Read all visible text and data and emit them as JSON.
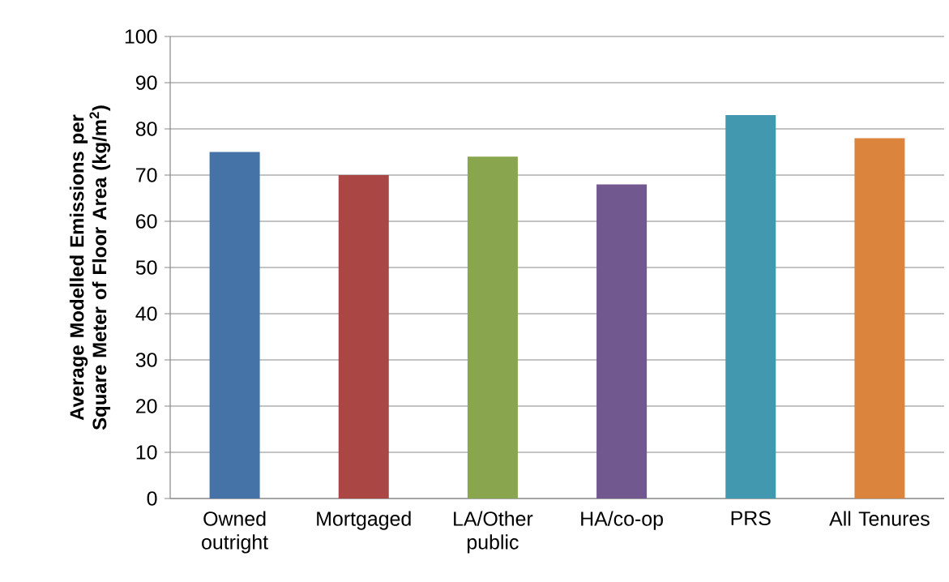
{
  "chart_data": {
    "type": "bar",
    "ylabel": "Average Modelled Emissions per Square Meter of Floor Area (kg/m$^{2}$)",
    "categories": [
      "Owned outright",
      "Mortgaged",
      "LA/Other public",
      "HA/co-op",
      "PRS",
      "All Tenures"
    ],
    "values": [
      75,
      70,
      74,
      68,
      83,
      78
    ],
    "colors": [
      "#4572a7",
      "#aa4643",
      "#89a54e",
      "#71588f",
      "#4198af",
      "#db843d"
    ],
    "ylim": [
      0,
      100
    ],
    "yticks": [
      0,
      10,
      20,
      30,
      40,
      50,
      60,
      70,
      80,
      90,
      100
    ],
    "grid": "y"
  }
}
